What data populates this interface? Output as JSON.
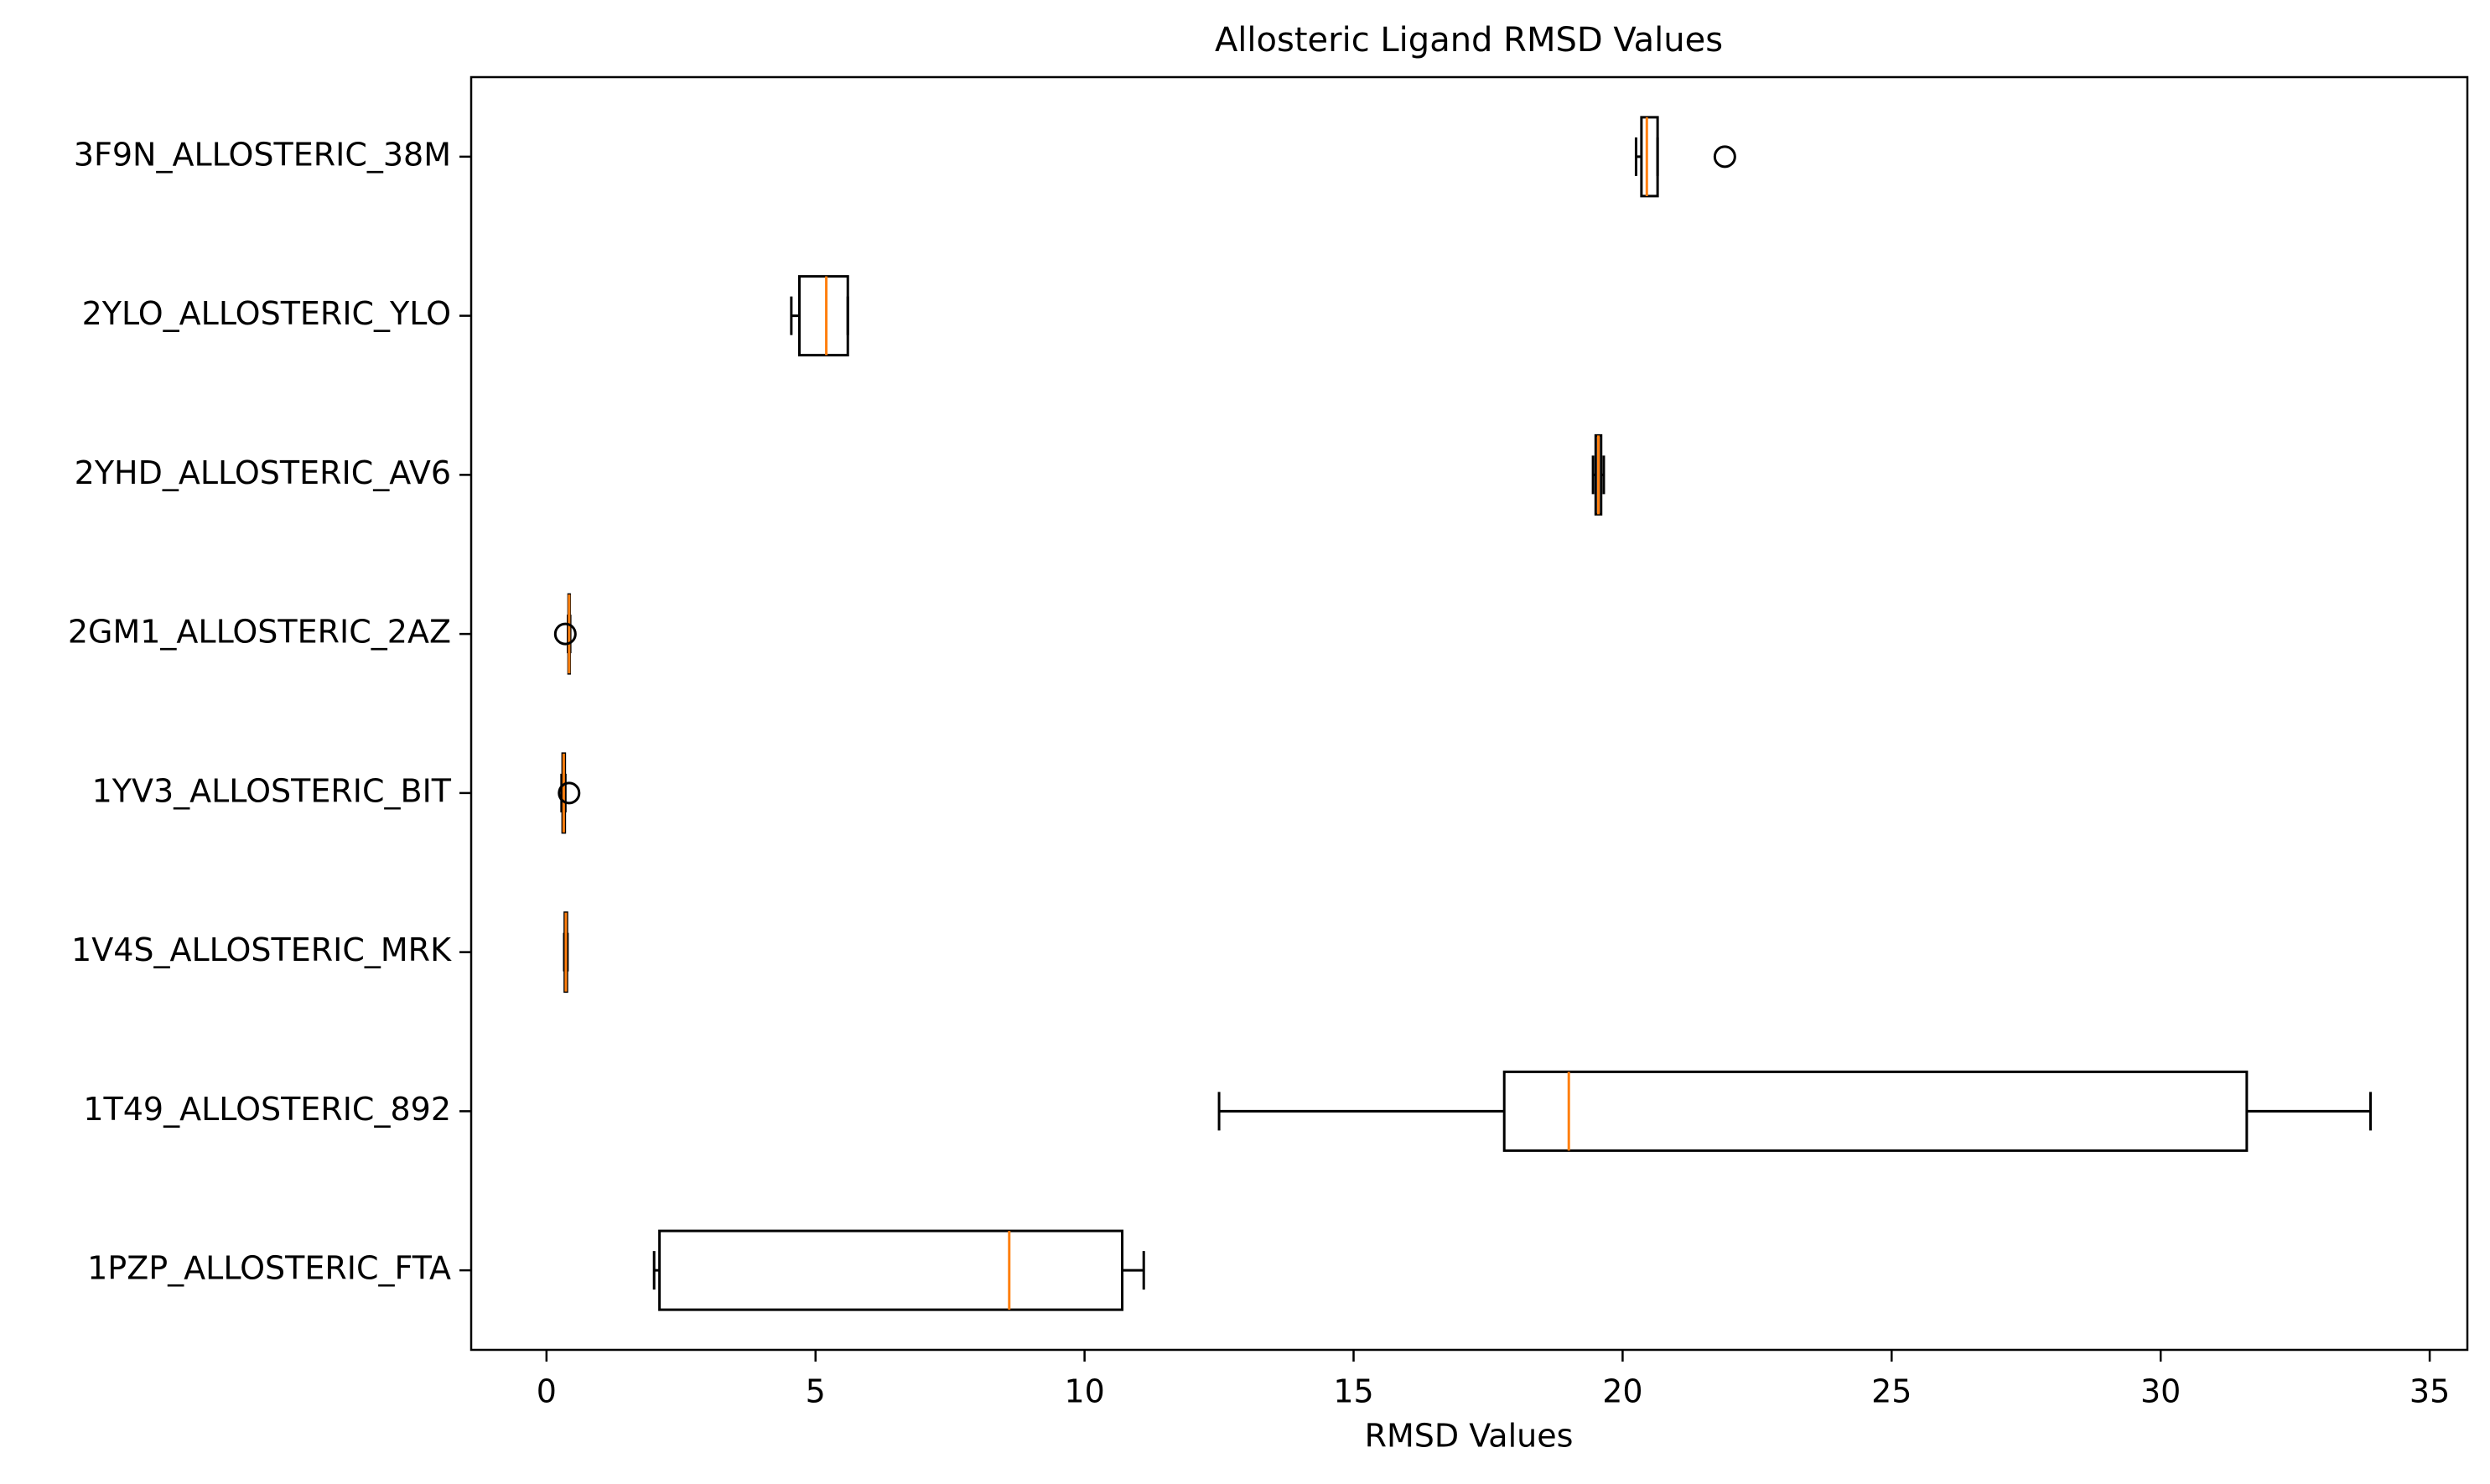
{
  "chart_data": {
    "type": "boxplot",
    "orientation": "horizontal",
    "title": "Allosteric Ligand RMSD Values",
    "xlabel": "RMSD Values",
    "ylabel": "",
    "xlim": [
      -1.4,
      35.7
    ],
    "xticks": [
      0,
      5,
      10,
      15,
      20,
      25,
      30,
      35
    ],
    "grid": false,
    "colors": {
      "box": "#000000",
      "median": "#ff7f0e",
      "background": "#ffffff"
    },
    "series": [
      {
        "name": "1PZP_ALLOSTERIC_FTA",
        "whislo": 2.0,
        "q1": 2.1,
        "med": 8.6,
        "q3": 10.7,
        "whishi": 11.1,
        "fliers": []
      },
      {
        "name": "1T49_ALLOSTERIC_892",
        "whislo": 12.5,
        "q1": 17.8,
        "med": 19.0,
        "q3": 31.6,
        "whishi": 33.9,
        "fliers": []
      },
      {
        "name": "1V4S_ALLOSTERIC_MRK",
        "whislo": 0.33,
        "q1": 0.34,
        "med": 0.36,
        "q3": 0.38,
        "whishi": 0.39,
        "fliers": []
      },
      {
        "name": "1YV3_ALLOSTERIC_BIT",
        "whislo": 0.28,
        "q1": 0.3,
        "med": 0.32,
        "q3": 0.34,
        "whishi": 0.35,
        "fliers": [
          0.42
        ]
      },
      {
        "name": "2GM1_ALLOSTERIC_2AZ",
        "whislo": 0.4,
        "q1": 0.41,
        "med": 0.42,
        "q3": 0.43,
        "whishi": 0.44,
        "fliers": [
          0.35
        ]
      },
      {
        "name": "2YHD_ALLOSTERIC_AV6",
        "whislo": 19.45,
        "q1": 19.5,
        "med": 19.55,
        "q3": 19.6,
        "whishi": 19.65,
        "fliers": []
      },
      {
        "name": "2YLO_ALLOSTERIC_YLO",
        "whislo": 4.55,
        "q1": 4.7,
        "med": 5.2,
        "q3": 5.6,
        "whishi": 5.6,
        "fliers": []
      },
      {
        "name": "3F9N_ALLOSTERIC_38M",
        "whislo": 20.25,
        "q1": 20.35,
        "med": 20.45,
        "q3": 20.65,
        "whishi": 20.65,
        "fliers": [
          21.9
        ]
      }
    ]
  }
}
